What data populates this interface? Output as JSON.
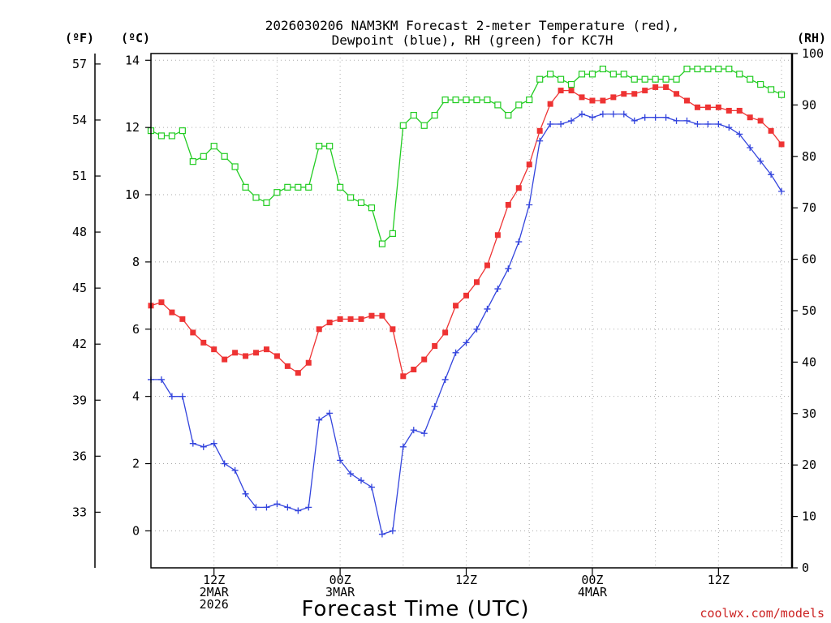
{
  "chart_data": {
    "type": "line",
    "title_line1": "2026030206 NAM3KM Forecast 2-meter Temperature (red),",
    "title_line2": "Dewpoint (blue), RH (green) for KC7H",
    "xlabel": "Forecast Time (UTC)",
    "credit": "coolwx.com/models",
    "units": {
      "fahrenheit": "(ºF)",
      "celsius": "(ºC)",
      "rh": "(RH)"
    },
    "x_start_hour": 6,
    "x_end_hour": 67,
    "x_step_hours": 1,
    "x_ticks": [
      {
        "hour": 12,
        "lines": [
          "12Z",
          "2MAR",
          "2026"
        ]
      },
      {
        "hour": 24,
        "lines": [
          "00Z",
          "3MAR"
        ]
      },
      {
        "hour": 36,
        "lines": [
          "12Z"
        ]
      },
      {
        "hour": 48,
        "lines": [
          "00Z",
          "4MAR"
        ]
      },
      {
        "hour": 60,
        "lines": [
          "12Z"
        ]
      }
    ],
    "ylim_celsius": [
      -1.1,
      14.2
    ],
    "yticks_celsius": [
      0,
      2,
      4,
      6,
      8,
      10,
      12,
      14
    ],
    "ylim_rh": [
      0,
      100
    ],
    "yticks_rh": [
      0,
      10,
      20,
      30,
      40,
      50,
      60,
      70,
      80,
      90,
      100
    ],
    "yticks_fahrenheit": [
      33,
      36,
      39,
      42,
      45,
      48,
      51,
      54,
      57
    ],
    "grid": true,
    "series": [
      {
        "name": "Temperature (red)",
        "axis": "celsius",
        "color": "#ee3333",
        "marker": "filled-square",
        "values": [
          6.7,
          6.8,
          6.5,
          6.3,
          5.9,
          5.6,
          5.4,
          5.1,
          5.3,
          5.2,
          5.3,
          5.4,
          5.2,
          4.9,
          4.7,
          5.0,
          6.0,
          6.2,
          6.3,
          6.3,
          6.3,
          6.4,
          6.4,
          6.0,
          4.6,
          4.8,
          5.1,
          5.5,
          5.9,
          6.7,
          7.0,
          7.4,
          7.9,
          8.8,
          9.7,
          10.2,
          10.9,
          11.9,
          12.7,
          13.1,
          13.1,
          12.9,
          12.8,
          12.8,
          12.9,
          13.0,
          13.0,
          13.1,
          13.2,
          13.2,
          13.0,
          12.8,
          12.6,
          12.6,
          12.6,
          12.5,
          12.5,
          12.3,
          12.2,
          11.9,
          11.5
        ]
      },
      {
        "name": "Dewpoint (blue)",
        "axis": "celsius",
        "color": "#3344dd",
        "marker": "plus",
        "values": [
          4.5,
          4.5,
          4.0,
          4.0,
          2.6,
          2.5,
          2.6,
          2.0,
          1.8,
          1.1,
          0.7,
          0.7,
          0.8,
          0.7,
          0.6,
          0.7,
          3.3,
          3.5,
          2.1,
          1.7,
          1.5,
          1.3,
          -0.1,
          0.0,
          2.5,
          3.0,
          2.9,
          3.7,
          4.5,
          5.3,
          5.6,
          6.0,
          6.6,
          7.2,
          7.8,
          8.6,
          9.7,
          11.6,
          12.1,
          12.1,
          12.2,
          12.4,
          12.3,
          12.4,
          12.4,
          12.4,
          12.2,
          12.3,
          12.3,
          12.3,
          12.2,
          12.2,
          12.1,
          12.1,
          12.1,
          12.0,
          11.8,
          11.4,
          11.0,
          10.6,
          10.1
        ]
      },
      {
        "name": "RH (green)",
        "axis": "rh",
        "color": "#22cc22",
        "marker": "open-square",
        "values": [
          85,
          84,
          84,
          85,
          79,
          80,
          82,
          80,
          78,
          74,
          72,
          71,
          73,
          74,
          74,
          74,
          82,
          82,
          74,
          72,
          71,
          70,
          63,
          65,
          86,
          88,
          86,
          88,
          91,
          91,
          91,
          91,
          91,
          90,
          88,
          90,
          91,
          95,
          96,
          95,
          94,
          96,
          96,
          97,
          96,
          96,
          95,
          95,
          95,
          95,
          95,
          97,
          97,
          97,
          97,
          97,
          96,
          95,
          94,
          93,
          92
        ]
      }
    ]
  }
}
